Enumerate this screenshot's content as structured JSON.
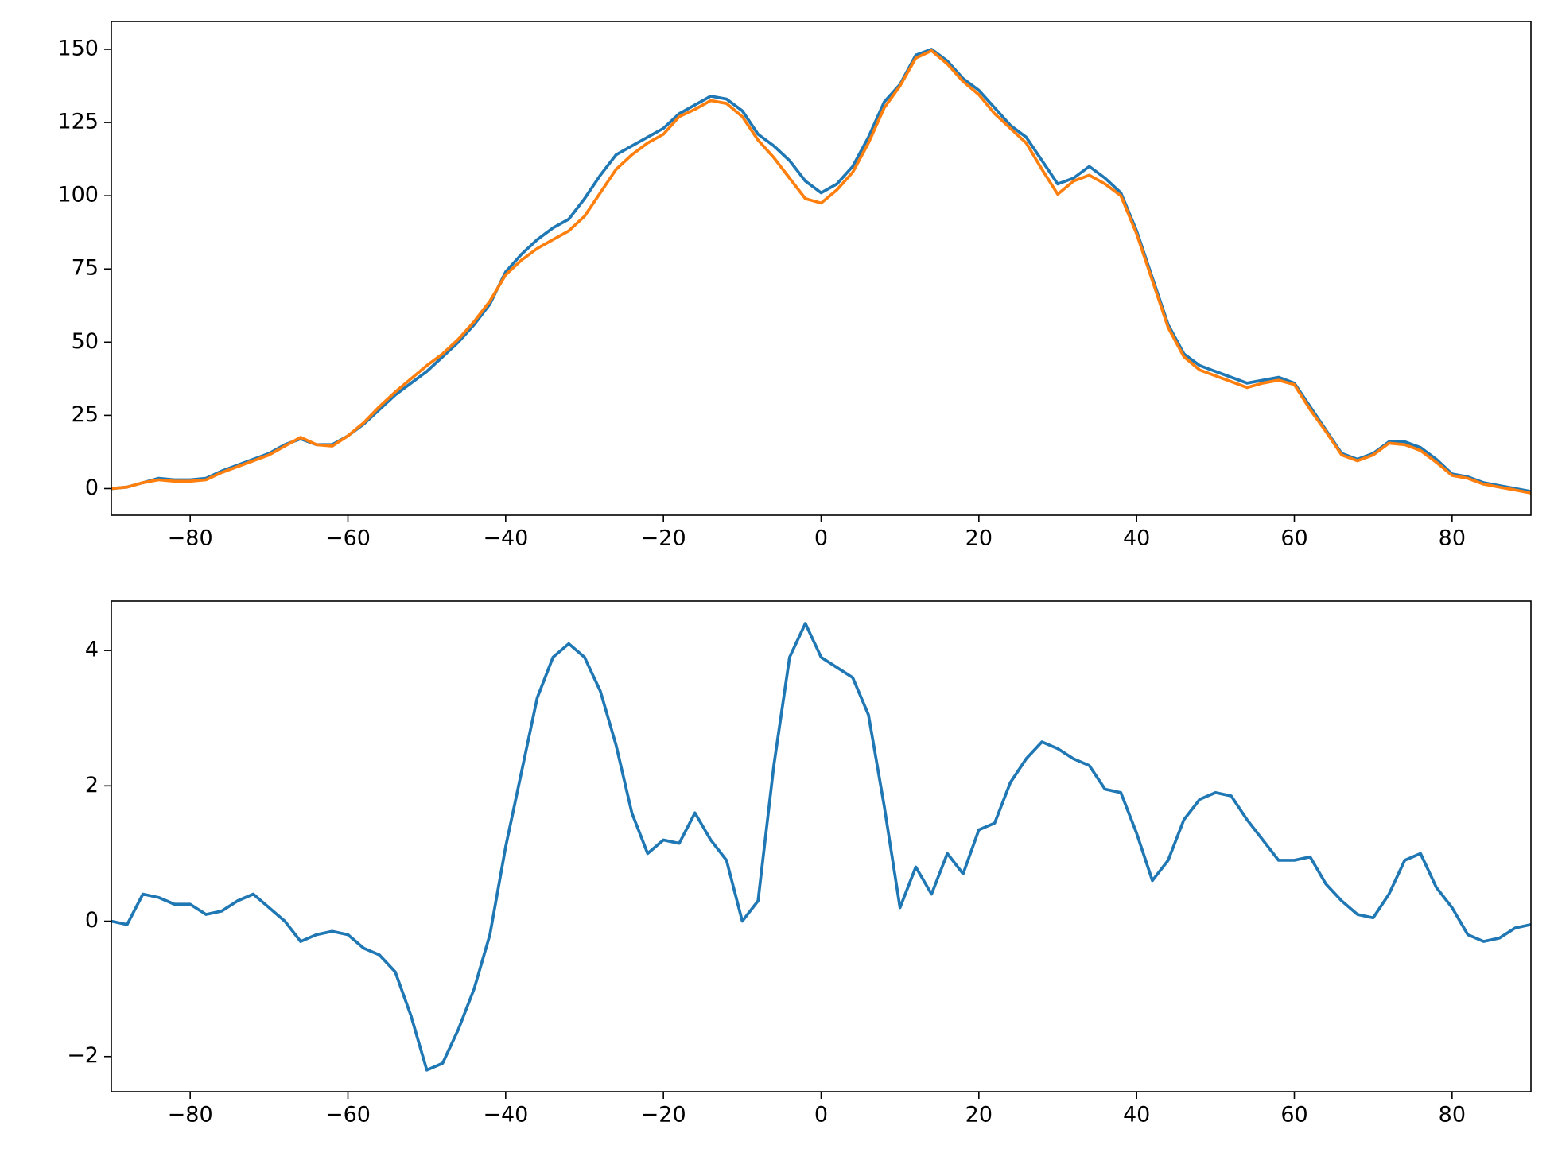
{
  "chart_data": [
    {
      "type": "line",
      "x": [
        -90,
        -88,
        -86,
        -84,
        -82,
        -80,
        -78,
        -76,
        -74,
        -72,
        -70,
        -68,
        -66,
        -64,
        -62,
        -60,
        -58,
        -56,
        -54,
        -52,
        -50,
        -48,
        -46,
        -44,
        -42,
        -40,
        -38,
        -36,
        -34,
        -32,
        -30,
        -28,
        -26,
        -24,
        -22,
        -20,
        -18,
        -16,
        -14,
        -12,
        -10,
        -8,
        -6,
        -4,
        -2,
        0,
        2,
        4,
        6,
        8,
        10,
        12,
        14,
        16,
        18,
        20,
        22,
        24,
        26,
        28,
        30,
        32,
        34,
        36,
        38,
        40,
        42,
        44,
        46,
        48,
        50,
        52,
        54,
        56,
        58,
        60,
        62,
        64,
        66,
        68,
        70,
        72,
        74,
        76,
        78,
        80,
        82,
        84,
        86,
        88,
        90
      ],
      "series": [
        {
          "color": "#1f77b4",
          "values": [
            0,
            0.5,
            2,
            3.5,
            3,
            3,
            3.5,
            6,
            8,
            10,
            12,
            15,
            17,
            15,
            15,
            18,
            22,
            27,
            32,
            36,
            40,
            45,
            50,
            56,
            63,
            74,
            80,
            85,
            89,
            92,
            99,
            107,
            114,
            117,
            120,
            123,
            128,
            131,
            134,
            133,
            129,
            121,
            117,
            112,
            105,
            101,
            104,
            110,
            120,
            132,
            138,
            148,
            150,
            146,
            140,
            136,
            130,
            124,
            120,
            112,
            104,
            106,
            110,
            106,
            101,
            88,
            72,
            56,
            46,
            42,
            40,
            38,
            36,
            37,
            38,
            36,
            28,
            20,
            12,
            10,
            12,
            16,
            16,
            14,
            10,
            5,
            4,
            2,
            1,
            0,
            -1
          ]
        },
        {
          "color": "#ff7f0e",
          "values": [
            0,
            0.5,
            2,
            3,
            2.5,
            2.5,
            3,
            5.5,
            7.5,
            9.5,
            11.5,
            14.5,
            17.5,
            15,
            14.5,
            18,
            22.5,
            28,
            33,
            37.5,
            42,
            46,
            51,
            57,
            64,
            73,
            78,
            82,
            85,
            88,
            93,
            101,
            109,
            114,
            118,
            121,
            127,
            129.5,
            132.5,
            131.5,
            127,
            119,
            113,
            106,
            99,
            97.5,
            102,
            108,
            118,
            130,
            137.5,
            147,
            149.5,
            145,
            139,
            134.5,
            128,
            123,
            118,
            109,
            100.5,
            105,
            107,
            104,
            100,
            87,
            71,
            55,
            45,
            40.5,
            38.5,
            36.5,
            34.5,
            36,
            37,
            35.5,
            27,
            19.5,
            11.5,
            9.5,
            11.5,
            15.5,
            15,
            13,
            9,
            4.5,
            3.5,
            1.5,
            0.5,
            -0.5,
            -1.5
          ]
        }
      ],
      "xlim": [
        -90,
        90
      ],
      "ylim": [
        -9.1,
        159.5
      ],
      "xticks": [
        {
          "value": -80,
          "label": "−80"
        },
        {
          "value": -60,
          "label": "−60"
        },
        {
          "value": -40,
          "label": "−40"
        },
        {
          "value": -20,
          "label": "−20"
        },
        0,
        20,
        40,
        60,
        80
      ],
      "yticks": [
        0,
        25,
        50,
        75,
        100,
        125,
        150
      ]
    },
    {
      "type": "line",
      "x": [
        -90,
        -88,
        -86,
        -84,
        -82,
        -80,
        -78,
        -76,
        -74,
        -72,
        -70,
        -68,
        -66,
        -64,
        -62,
        -60,
        -58,
        -56,
        -54,
        -52,
        -50,
        -48,
        -46,
        -44,
        -42,
        -40,
        -38,
        -36,
        -34,
        -32,
        -30,
        -28,
        -26,
        -24,
        -22,
        -20,
        -18,
        -16,
        -14,
        -12,
        -10,
        -8,
        -6,
        -4,
        -2,
        0,
        2,
        4,
        6,
        8,
        10,
        12,
        14,
        16,
        18,
        20,
        22,
        24,
        26,
        28,
        30,
        32,
        34,
        36,
        38,
        40,
        42,
        44,
        46,
        48,
        50,
        52,
        54,
        56,
        58,
        60,
        62,
        64,
        66,
        68,
        70,
        72,
        74,
        76,
        78,
        80,
        82,
        84,
        86,
        88,
        90
      ],
      "series": [
        {
          "color": "#1f77b4",
          "values": [
            0,
            -0.05,
            0.4,
            0.35,
            0.25,
            0.25,
            0.1,
            0.15,
            0.3,
            0.4,
            0.2,
            0,
            -0.3,
            -0.2,
            -0.15,
            -0.2,
            -0.4,
            -0.5,
            -0.75,
            -1.4,
            -2.2,
            -2.1,
            -1.6,
            -1.0,
            -0.2,
            1.1,
            2.2,
            3.3,
            3.9,
            4.1,
            3.9,
            3.4,
            2.6,
            1.6,
            1.0,
            1.2,
            1.15,
            1.6,
            1.2,
            0.9,
            0.0,
            0.3,
            2.3,
            3.9,
            4.4,
            3.9,
            3.75,
            3.6,
            3.05,
            1.7,
            0.2,
            0.8,
            0.4,
            1.0,
            0.7,
            1.35,
            1.45,
            2.05,
            2.4,
            2.65,
            2.55,
            2.4,
            2.3,
            1.95,
            1.9,
            1.3,
            0.6,
            0.9,
            1.5,
            1.8,
            1.9,
            1.85,
            1.5,
            1.2,
            0.9,
            0.9,
            0.95,
            0.55,
            0.3,
            0.1,
            0.05,
            0.4,
            0.9,
            1.0,
            0.5,
            0.2,
            -0.2,
            -0.3,
            -0.25,
            -0.1,
            -0.05
          ]
        }
      ],
      "xlim": [
        -90,
        90
      ],
      "ylim": [
        -2.52,
        4.73
      ],
      "xticks": [
        {
          "value": -80,
          "label": "−80"
        },
        {
          "value": -60,
          "label": "−60"
        },
        {
          "value": -40,
          "label": "−40"
        },
        {
          "value": -20,
          "label": "−20"
        },
        0,
        20,
        40,
        60,
        80
      ],
      "yticks": [
        {
          "value": -2,
          "label": "−2"
        },
        0,
        2,
        4
      ]
    }
  ]
}
